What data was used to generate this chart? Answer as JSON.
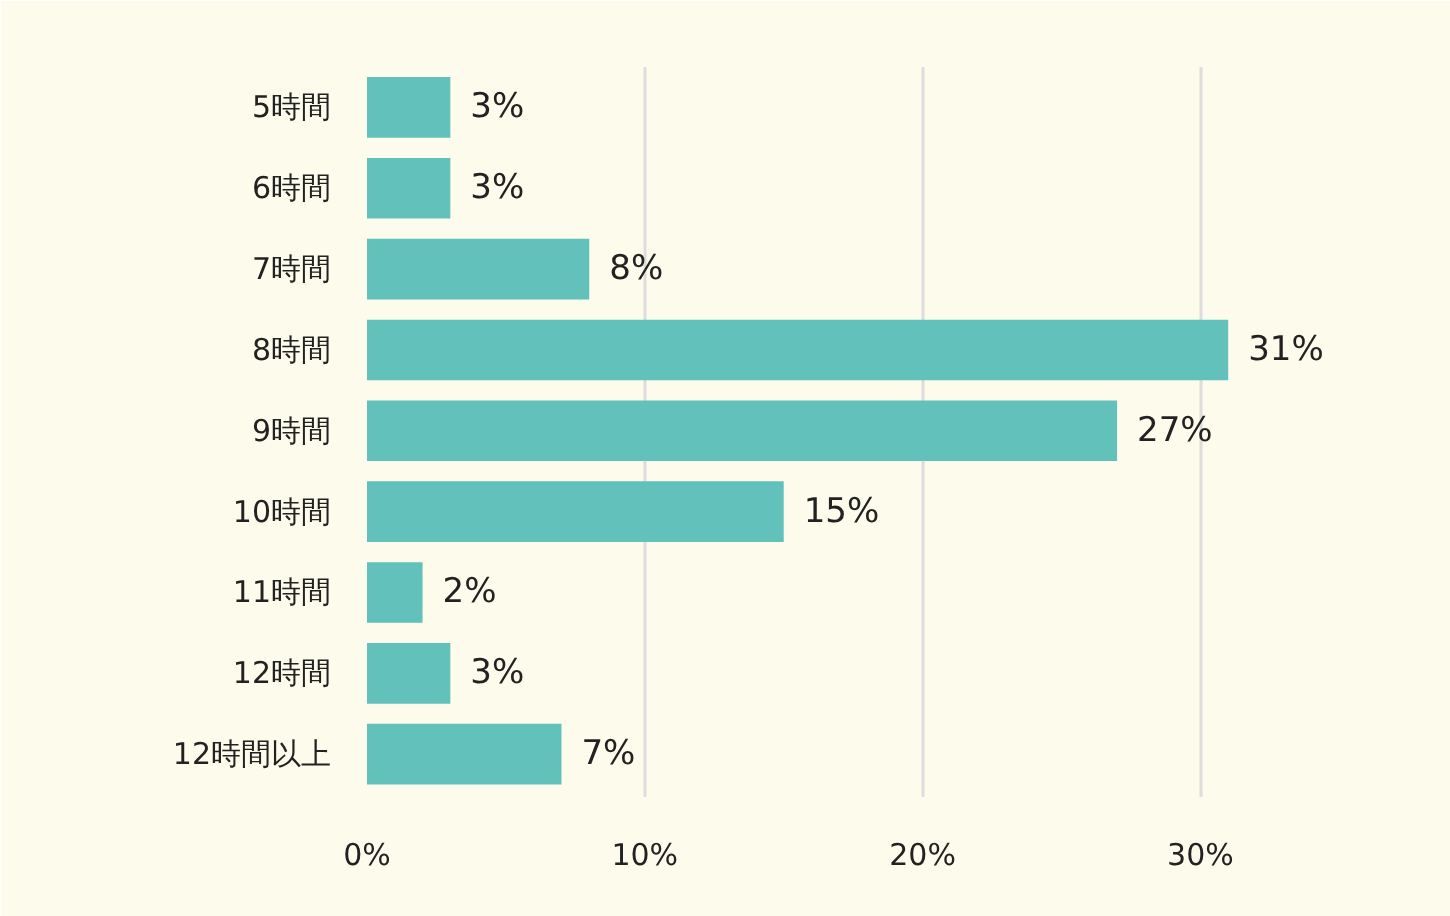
{
  "chart_data": {
    "type": "bar",
    "orientation": "horizontal",
    "categories": [
      "5時間",
      "6時間",
      "7時間",
      "8時間",
      "9時間",
      "10時間",
      "11時間",
      "12時間",
      "12時間以上"
    ],
    "values": [
      3,
      3,
      8,
      31,
      27,
      15,
      2,
      3,
      7
    ],
    "color": "#62c1bb",
    "xlim": [
      0,
      36.5
    ],
    "xticks": [
      {
        "value": 0,
        "label": "0%"
      },
      {
        "value": 10,
        "label": "10%"
      },
      {
        "value": 20,
        "label": "20%"
      },
      {
        "value": 30,
        "label": "30%"
      }
    ],
    "value_labels": [
      "3%",
      "3%",
      "8%",
      "31%",
      "27%",
      "15%",
      "2%",
      "3%",
      "7%"
    ],
    "grid": "x"
  }
}
